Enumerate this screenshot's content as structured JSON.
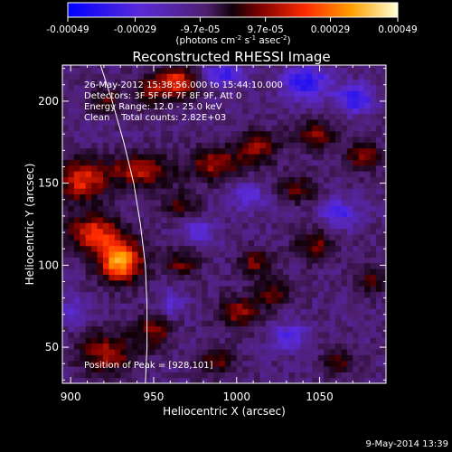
{
  "chart_data": {
    "type": "heatmap",
    "title": "Reconstructed RHESSI Image",
    "xlabel": "Heliocentric X (arcsec)",
    "ylabel": "Heliocentric Y (arcsec)",
    "xlim": [
      895,
      1090
    ],
    "ylim": [
      28,
      222
    ],
    "x_ticks": [
      900,
      950,
      1000,
      1050
    ],
    "y_ticks": [
      50,
      100,
      150,
      200
    ],
    "colorbar": {
      "ticks": [
        "-0.00049",
        "-0.00029",
        "-9.7e-05",
        "9.7e-05",
        "0.00029",
        "0.00049"
      ],
      "tick_values": [
        -0.00049,
        -0.00029,
        -9.7e-05,
        9.7e-05,
        0.00029,
        0.00049
      ],
      "range": [
        -0.00049,
        0.00049
      ],
      "unit_base": "(photons cm",
      "unit_exp1": "-2",
      "unit_mid": " s",
      "unit_exp2": "-1",
      "unit_mid2": " asec",
      "unit_exp3": "-2",
      "unit_end": ")"
    },
    "annotations": [
      "26-May-2012 15:38:56.000 to 15:44:10.000",
      "Detectors: 3F 5F 6F 7F 8F 9F, Att 0",
      "Energy Range: 12.0 - 25.0 keV",
      "Clean    Total counts: 2.82E+03"
    ],
    "peak_label": "Position of Peak = [928,101]",
    "peak": [
      928,
      101
    ],
    "limb_points": [
      [
        918,
        222
      ],
      [
        925,
        200
      ],
      [
        932,
        175
      ],
      [
        938,
        150
      ],
      [
        942,
        125
      ],
      [
        945,
        100
      ],
      [
        946,
        75
      ],
      [
        946,
        50
      ],
      [
        945,
        28
      ]
    ],
    "blobs": [
      {
        "x": 928,
        "y": 101,
        "sx": 9,
        "sy": 9,
        "amp": 0.00049
      },
      {
        "x": 912,
        "y": 118,
        "sx": 11,
        "sy": 8,
        "amp": 0.00033
      },
      {
        "x": 905,
        "y": 150,
        "sx": 10,
        "sy": 9,
        "amp": 0.00031
      },
      {
        "x": 940,
        "y": 156,
        "sx": 14,
        "sy": 7,
        "amp": 0.00026
      },
      {
        "x": 962,
        "y": 210,
        "sx": 8,
        "sy": 7,
        "amp": 0.00034
      },
      {
        "x": 945,
        "y": 205,
        "sx": 6,
        "sy": 6,
        "amp": 0.00022
      },
      {
        "x": 985,
        "y": 160,
        "sx": 10,
        "sy": 7,
        "amp": 0.00024
      },
      {
        "x": 1010,
        "y": 170,
        "sx": 9,
        "sy": 7,
        "amp": 0.00023
      },
      {
        "x": 1045,
        "y": 178,
        "sx": 9,
        "sy": 6,
        "amp": 0.00021
      },
      {
        "x": 1075,
        "y": 165,
        "sx": 8,
        "sy": 6,
        "amp": 0.00021
      },
      {
        "x": 920,
        "y": 45,
        "sx": 12,
        "sy": 9,
        "amp": 0.00024
      },
      {
        "x": 948,
        "y": 58,
        "sx": 8,
        "sy": 7,
        "amp": 0.0002
      },
      {
        "x": 1000,
        "y": 70,
        "sx": 9,
        "sy": 7,
        "amp": 0.00022
      },
      {
        "x": 1010,
        "y": 100,
        "sx": 7,
        "sy": 6,
        "amp": 0.0002
      },
      {
        "x": 1020,
        "y": 82,
        "sx": 7,
        "sy": 6,
        "amp": 0.00018
      },
      {
        "x": 1045,
        "y": 110,
        "sx": 8,
        "sy": 7,
        "amp": 0.0002
      },
      {
        "x": 1080,
        "y": 90,
        "sx": 7,
        "sy": 6,
        "amp": 0.00016
      },
      {
        "x": 965,
        "y": 100,
        "sx": 8,
        "sy": 6,
        "amp": 0.00018
      },
      {
        "x": 985,
        "y": 40,
        "sx": 8,
        "sy": 6,
        "amp": 0.00018
      },
      {
        "x": 1060,
        "y": 40,
        "sx": 7,
        "sy": 6,
        "amp": 0.00016
      },
      {
        "x": 1035,
        "y": 145,
        "sx": 8,
        "sy": 6,
        "amp": 0.00017
      },
      {
        "x": 965,
        "y": 135,
        "sx": 8,
        "sy": 6,
        "amp": 0.00016
      },
      {
        "x": 920,
        "y": 200,
        "sx": 7,
        "sy": 6,
        "amp": 0.00015
      },
      {
        "x": 990,
        "y": 215,
        "sx": 8,
        "sy": 5,
        "amp": -0.00022
      },
      {
        "x": 1040,
        "y": 210,
        "sx": 10,
        "sy": 7,
        "amp": -0.00026
      },
      {
        "x": 1070,
        "y": 200,
        "sx": 8,
        "sy": 6,
        "amp": -0.00024
      },
      {
        "x": 1060,
        "y": 130,
        "sx": 8,
        "sy": 6,
        "amp": -0.00018
      },
      {
        "x": 975,
        "y": 120,
        "sx": 7,
        "sy": 6,
        "amp": -0.00014
      },
      {
        "x": 1030,
        "y": 55,
        "sx": 8,
        "sy": 6,
        "amp": -0.00016
      },
      {
        "x": 960,
        "y": 75,
        "sx": 6,
        "sy": 5,
        "amp": -0.00014
      },
      {
        "x": 1005,
        "y": 140,
        "sx": 8,
        "sy": 6,
        "amp": -0.00014
      },
      {
        "x": 900,
        "y": 70,
        "sx": 6,
        "sy": 6,
        "amp": -0.00012
      }
    ],
    "background_level": -0.00013
  },
  "footer_timestamp": "9-May-2014 13:39"
}
